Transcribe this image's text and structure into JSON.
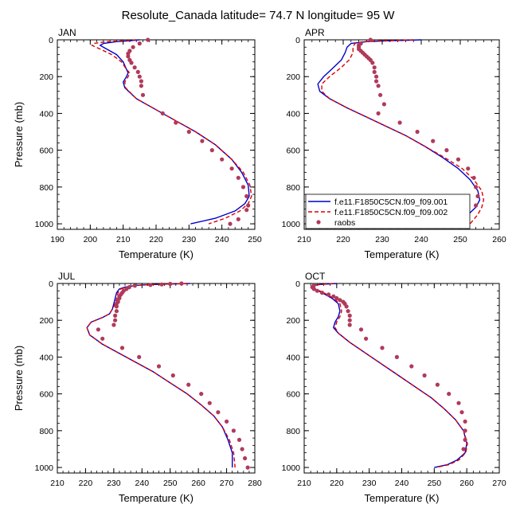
{
  "figure": {
    "title": "Resolute_Canada  latitude= 74.7 N longitude= 95 W"
  },
  "legend": {
    "entries": [
      {
        "label": "f.e11.F1850C5CN.f09_f09.001",
        "color": "#0000cc",
        "style": "solid"
      },
      {
        "label": "f.e11.F1850C5CN.f09_f09.002",
        "color": "#dd0000",
        "style": "dashed"
      },
      {
        "label": "raobs",
        "color": "#b03a5b",
        "style": "marker"
      }
    ]
  },
  "chart_data": [
    {
      "type": "line",
      "panel": "JAN",
      "title": "JAN",
      "xlabel": "Temperature (K)",
      "ylabel": "Pressure (mb)",
      "xlim": [
        190,
        250
      ],
      "ylim": [
        0,
        1030
      ],
      "xticks": [
        190,
        200,
        210,
        220,
        230,
        240,
        250
      ],
      "yticks": [
        0,
        200,
        400,
        600,
        800,
        1000
      ],
      "series": [
        {
          "name": "f.e11.F1850C5CN.f09_f09.001",
          "color": "#0000cc",
          "dash": "",
          "x": [
            215,
            212,
            208,
            204,
            203,
            205,
            208,
            210,
            211,
            211.5,
            211,
            210,
            210.5,
            214,
            220,
            226,
            232,
            238,
            243,
            246,
            248,
            248.3,
            247,
            244,
            238,
            230.5
          ],
          "y": [
            0,
            5,
            10,
            20,
            30,
            50,
            80,
            120,
            160,
            180,
            200,
            230,
            260,
            320,
            380,
            440,
            500,
            570,
            650,
            720,
            790,
            850,
            890,
            930,
            970,
            1000
          ]
        },
        {
          "name": "f.e11.F1850C5CN.f09_f09.002",
          "color": "#dd0000",
          "dash": "5,3",
          "x": [
            214,
            210,
            205,
            201,
            200.5,
            203,
            206.5,
            209.5,
            211,
            212,
            211.5,
            210.5,
            210.7,
            214,
            220,
            226,
            232,
            238,
            243,
            246.5,
            248.5,
            249,
            248,
            245.5,
            241,
            236
          ],
          "y": [
            0,
            5,
            10,
            20,
            30,
            50,
            80,
            120,
            160,
            180,
            200,
            230,
            260,
            320,
            380,
            440,
            500,
            570,
            650,
            720,
            790,
            850,
            890,
            930,
            970,
            1000
          ]
        }
      ],
      "raobs": {
        "x": [
          217.5,
          215,
          213,
          212,
          211.5,
          211.5,
          212,
          212.5,
          213.5,
          214.5,
          215,
          215.5,
          215.5,
          216,
          222,
          226,
          230,
          234,
          237,
          240,
          243,
          245,
          246.5,
          247.5,
          248,
          247.5,
          245,
          242.5
        ],
        "y": [
          0,
          20,
          40,
          60,
          75,
          90,
          110,
          125,
          150,
          175,
          200,
          225,
          250,
          300,
          400,
          450,
          500,
          550,
          600,
          650,
          700,
          750,
          800,
          850,
          900,
          925,
          975,
          1000
        ]
      }
    },
    {
      "type": "line",
      "panel": "APR",
      "title": "APR",
      "xlabel": "Temperature (K)",
      "ylabel": "",
      "xlim": [
        210,
        260
      ],
      "ylim": [
        0,
        1030
      ],
      "xticks": [
        210,
        220,
        230,
        240,
        250,
        260
      ],
      "yticks": [
        0,
        200,
        400,
        600,
        800,
        1000
      ],
      "series": [
        {
          "name": "f.e11.F1850C5CN.f09_f09.001",
          "color": "#0000cc",
          "dash": "",
          "x": [
            240,
            232,
            226,
            222,
            221,
            220.5,
            219.5,
            217.5,
            215,
            213.5,
            214,
            216.5,
            221,
            226,
            231,
            236,
            241,
            245.5,
            249.5,
            252.5,
            254.5,
            255,
            254,
            252,
            249
          ],
          "y": [
            0,
            5,
            10,
            20,
            40,
            70,
            110,
            150,
            200,
            240,
            280,
            320,
            370,
            420,
            470,
            520,
            580,
            640,
            700,
            760,
            820,
            870,
            910,
            950,
            1000
          ]
        },
        {
          "name": "f.e11.F1850C5CN.f09_f09.002",
          "color": "#dd0000",
          "dash": "5,3",
          "x": [
            238,
            230,
            225,
            223,
            222.5,
            222.5,
            221.5,
            219.5,
            216.5,
            214.5,
            214.5,
            216.5,
            221,
            226,
            231,
            236,
            241,
            246,
            250.5,
            253.5,
            255.5,
            256,
            255.5,
            254.5,
            252.5
          ],
          "y": [
            0,
            5,
            10,
            20,
            40,
            70,
            110,
            150,
            200,
            240,
            280,
            320,
            370,
            420,
            470,
            520,
            580,
            640,
            700,
            760,
            820,
            870,
            910,
            950,
            1000
          ]
        }
      ],
      "raobs": {
        "x": [
          227,
          224.5,
          224,
          224,
          224,
          224.5,
          225,
          225.5,
          226,
          226.5,
          227,
          227.5,
          228,
          228,
          228.5,
          228.5,
          229,
          229.5,
          230.5,
          229,
          234.5,
          239,
          243,
          246.5,
          249.5,
          252,
          253.5,
          254,
          254.5,
          254,
          252,
          251
        ],
        "y": [
          0,
          20,
          30,
          40,
          50,
          60,
          70,
          80,
          90,
          100,
          110,
          125,
          150,
          175,
          200,
          225,
          250,
          300,
          350,
          400,
          450,
          500,
          550,
          600,
          650,
          700,
          750,
          800,
          850,
          900,
          950,
          990
        ]
      }
    },
    {
      "type": "line",
      "panel": "JUL",
      "title": "JUL",
      "xlabel": "Temperature (K)",
      "ylabel": "Pressure (mb)",
      "xlim": [
        210,
        280
      ],
      "ylim": [
        0,
        1030
      ],
      "xticks": [
        210,
        220,
        230,
        240,
        250,
        260,
        270,
        280
      ],
      "yticks": [
        0,
        200,
        400,
        600,
        800,
        1000
      ],
      "series": [
        {
          "name": "f.e11.F1850C5CN.f09_f09.001",
          "color": "#0000cc",
          "dash": "",
          "x": [
            257,
            245,
            238,
            234,
            232,
            231,
            230.5,
            230,
            229.5,
            228.5,
            226,
            222,
            220.5,
            221.5,
            226,
            232,
            238,
            244,
            250,
            256,
            261,
            265.5,
            268.5,
            270.5,
            272,
            272
          ],
          "y": [
            0,
            5,
            10,
            20,
            30,
            50,
            80,
            110,
            140,
            165,
            185,
            210,
            240,
            280,
            330,
            380,
            430,
            480,
            540,
            600,
            660,
            720,
            780,
            850,
            920,
            1000
          ]
        },
        {
          "name": "f.e11.F1850C5CN.f09_f09.002",
          "color": "#dd0000",
          "dash": "5,3",
          "x": [
            256,
            244.5,
            238,
            234.5,
            232.5,
            231.5,
            231,
            230.5,
            229.5,
            228.5,
            226,
            222,
            220.5,
            221.5,
            226,
            232,
            238,
            244,
            250,
            256,
            261,
            265.5,
            268.5,
            271,
            272.5,
            273
          ],
          "y": [
            0,
            5,
            10,
            20,
            30,
            50,
            80,
            110,
            140,
            165,
            185,
            210,
            240,
            280,
            330,
            380,
            430,
            480,
            540,
            600,
            660,
            720,
            780,
            850,
            920,
            1000
          ]
        }
      ],
      "raobs": {
        "x": [
          254,
          250,
          247,
          243,
          237.5,
          235.5,
          234.5,
          233.5,
          233,
          232.5,
          232,
          232,
          231.5,
          231.5,
          231,
          231,
          231,
          230.5,
          230.5,
          230,
          224.5,
          226,
          233,
          239,
          246,
          251,
          256.5,
          261,
          264,
          267,
          270,
          272.5,
          274.5,
          275.5,
          276.5,
          277.5
        ],
        "y": [
          0,
          2,
          5,
          8,
          12,
          20,
          30,
          40,
          50,
          60,
          70,
          80,
          90,
          100,
          110,
          125,
          150,
          175,
          200,
          225,
          250,
          300,
          350,
          400,
          450,
          500,
          550,
          600,
          650,
          700,
          750,
          800,
          850,
          900,
          950,
          1000
        ]
      }
    },
    {
      "type": "line",
      "panel": "OCT",
      "title": "OCT",
      "xlabel": "Temperature (K)",
      "ylabel": "",
      "xlim": [
        210,
        270
      ],
      "ylim": [
        0,
        1030
      ],
      "xticks": [
        210,
        220,
        230,
        240,
        250,
        260,
        270
      ],
      "yticks": [
        0,
        200,
        400,
        600,
        800,
        1000
      ],
      "series": [
        {
          "name": "f.e11.F1850C5CN.f09_f09.001",
          "color": "#0000cc",
          "dash": "",
          "x": [
            220,
            215,
            213,
            212.5,
            213,
            215.5,
            218.5,
            220.5,
            221,
            220.5,
            219.5,
            219,
            220.5,
            224,
            229,
            234,
            239,
            244,
            249,
            253,
            256.5,
            259,
            260,
            259.5,
            257,
            254,
            250
          ],
          "y": [
            0,
            5,
            10,
            20,
            30,
            50,
            80,
            110,
            150,
            180,
            210,
            240,
            270,
            320,
            380,
            440,
            500,
            560,
            620,
            680,
            740,
            800,
            870,
            920,
            960,
            985,
            1000
          ]
        },
        {
          "name": "f.e11.F1850C5CN.f09_f09.002",
          "color": "#dd0000",
          "dash": "5,3",
          "x": [
            219,
            215,
            213.5,
            213,
            213.5,
            216,
            219,
            221,
            221.5,
            221,
            220,
            219.5,
            220.5,
            224,
            229,
            234,
            239,
            244,
            249,
            253,
            256.5,
            259,
            260.2,
            259.7,
            257.5,
            254.5,
            250.5
          ],
          "y": [
            0,
            5,
            10,
            20,
            30,
            50,
            80,
            110,
            150,
            180,
            210,
            240,
            270,
            320,
            380,
            440,
            500,
            560,
            620,
            680,
            740,
            800,
            870,
            920,
            960,
            985,
            1000
          ]
        }
      ],
      "raobs": {
        "x": [
          213,
          212.5,
          213,
          214,
          215.5,
          217.5,
          219,
          220,
          221,
          222,
          222.5,
          223,
          223.5,
          224,
          224,
          224,
          227.5,
          229,
          234,
          238.5,
          243,
          247,
          251,
          254.5,
          257.5,
          258.5,
          259.5,
          259.5,
          259.5,
          259
        ],
        "y": [
          10,
          20,
          30,
          40,
          50,
          60,
          70,
          80,
          90,
          100,
          110,
          125,
          150,
          175,
          200,
          225,
          250,
          300,
          350,
          400,
          450,
          500,
          550,
          600,
          650,
          700,
          750,
          800,
          850,
          900
        ]
      }
    }
  ]
}
